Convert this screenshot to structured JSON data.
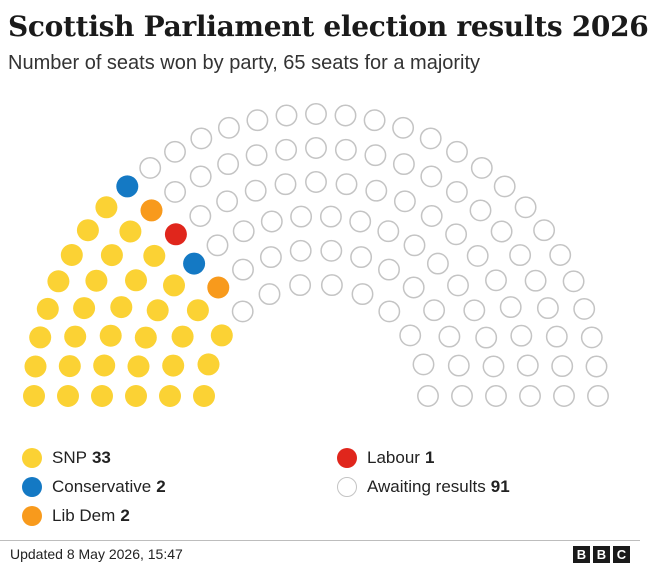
{
  "header": {
    "title": "Scottish Parliament election results 2026",
    "subtitle": "Number of seats won by party, 65 seats for a majority"
  },
  "chart_data": {
    "type": "parliament",
    "total_seats": 129,
    "majority": 65,
    "series": [
      {
        "name": "SNP",
        "value": 33,
        "color": "#fbd234"
      },
      {
        "name": "Conservative",
        "value": 2,
        "color": "#1479c4"
      },
      {
        "name": "Lib Dem",
        "value": 2,
        "color": "#f89a1c"
      },
      {
        "name": "Labour",
        "value": 1,
        "color": "#e0261c"
      },
      {
        "name": "Awaiting results",
        "value": 91,
        "color": "#ffffff",
        "stroke": "#c4c4c4"
      }
    ]
  },
  "legend": {
    "left": [
      {
        "label": "SNP",
        "value": "33",
        "color": "#fbd234"
      },
      {
        "label": "Conservative",
        "value": "2",
        "color": "#1479c4"
      },
      {
        "label": "Lib Dem",
        "value": "2",
        "color": "#f89a1c"
      }
    ],
    "right": [
      {
        "label": "Labour",
        "value": "1",
        "color": "#e0261c"
      },
      {
        "label": "Awaiting results",
        "value": "91",
        "color": "#ffffff"
      }
    ]
  },
  "footer": {
    "updated": "Updated 8 May 2026, 15:47",
    "logo": [
      "B",
      "B",
      "C"
    ]
  }
}
